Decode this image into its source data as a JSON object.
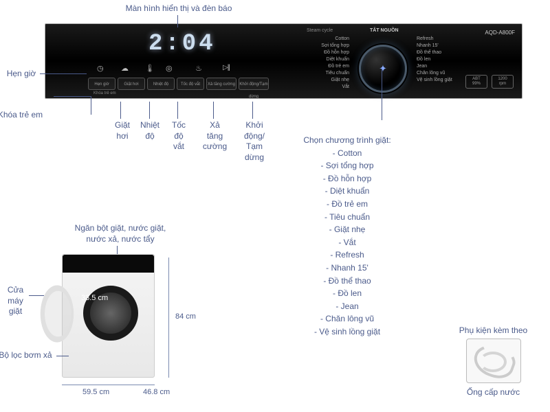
{
  "colors": {
    "callout": "#4a5a8a",
    "panel_bg": "#000000",
    "display": "#cde"
  },
  "model": "AQD-A800F",
  "display_time": "2:04",
  "steam_cycle": "Steam cycle",
  "tat_nguon": "TẮT NGUỒN",
  "child_lock_panel": "Khóa trẻ em",
  "panel_buttons": [
    "Hẹn giờ",
    "Giặt hơi",
    "Nhiệt độ",
    "Tốc độ vắt",
    "Xả tăng cường",
    "Khởi động/Tạm dừng"
  ],
  "right_boxes": {
    "rpm": "1200\nrpm",
    "abt": "ABT\n99%"
  },
  "programs_left": [
    "Cotton",
    "Sợi tổng hợp",
    "Đồ hỗn hợp",
    "Diệt khuẩn",
    "Đồ trẻ em",
    "Tiêu chuẩn",
    "Giặt nhẹ",
    "Vắt"
  ],
  "programs_right": [
    "Refresh",
    "Nhanh 15'",
    "Đồ thể thao",
    "Đồ len",
    "Jean",
    "Chăn lông vũ",
    "Vệ sinh lồng giặt"
  ],
  "callouts": {
    "display": "Màn hình hiển thị và đèn báo",
    "timer": "Hẹn giờ",
    "childlock": "Khóa trẻ em",
    "steam": "Giặt\nhơi",
    "temp": "Nhiệt\nđộ",
    "spin": "Tốc\nđộ\nvắt",
    "rinse": "Xả\ntăng\ncường",
    "start": "Khởi\nđộng/\nTạm\ndừng",
    "programs_title": "Chọn chương trình giặt:",
    "detergent": "Ngăn bột giặt, nước giặt,\nnước xả, nước tẩy",
    "door": "Cửa\nmáy\ngiặt",
    "filter": "Bộ lọc bơm xả",
    "accessory_title": "Phụ kiện kèm theo",
    "accessory_item": "Ống cấp nước"
  },
  "programs_list": [
    "Cotton",
    "Sợi tổng hợp",
    "Đồ hỗn hợp",
    "Diệt khuẩn",
    "Đồ trẻ em",
    "Tiêu chuẩn",
    "Giặt nhẹ",
    "Vắt",
    "Refresh",
    "Nhanh 15'",
    "Đồ thể thao",
    "Đồ len",
    "Jean",
    "Chăn lông vũ",
    "Vệ sinh lồng giặt"
  ],
  "dimensions": {
    "diameter": "33.5 cm",
    "height": "84 cm",
    "width": "59.5 cm",
    "depth": "46.8 cm"
  }
}
